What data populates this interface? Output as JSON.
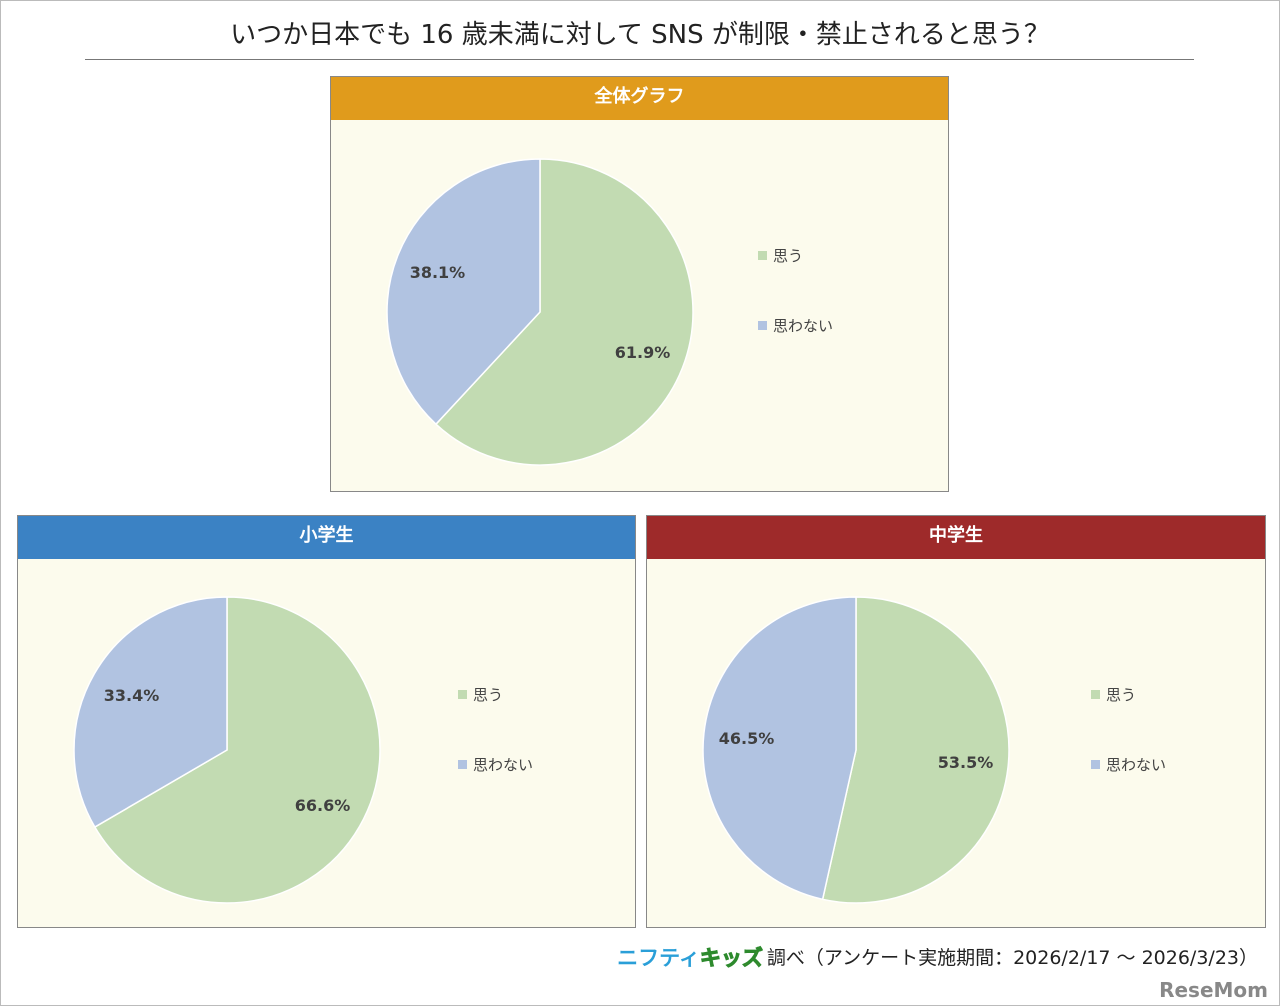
{
  "title": "いつか日本でも 16 歳未満に対して SNS が制限・禁止されると思う？",
  "legend": [
    "思う",
    "思わない"
  ],
  "colors": {
    "yes": "#c2dbb2",
    "no": "#b1c3e1",
    "label": "#404040"
  },
  "chart_data": [
    {
      "type": "pie",
      "title": "全体グラフ",
      "header_color": "#e09b1c",
      "categories": [
        "思う",
        "思わない"
      ],
      "values": [
        61.9,
        38.1
      ],
      "labels": [
        "61.9%",
        "38.1%"
      ]
    },
    {
      "type": "pie",
      "title": "小学生",
      "header_color": "#3b82c4",
      "categories": [
        "思う",
        "思わない"
      ],
      "values": [
        66.6,
        33.4
      ],
      "labels": [
        "66.6%",
        "33.4%"
      ]
    },
    {
      "type": "pie",
      "title": "中学生",
      "header_color": "#9e2a2a",
      "categories": [
        "思う",
        "思わない"
      ],
      "values": [
        53.5,
        46.5
      ],
      "labels": [
        "53.5%",
        "46.5%"
      ]
    }
  ],
  "footer": {
    "logo_a": "ニフティ",
    "logo_b": "キッズ",
    "text": "調べ（アンケート実施期間：2026/2/17 ～ 2026/3/23）",
    "watermark": "ReseMom"
  }
}
